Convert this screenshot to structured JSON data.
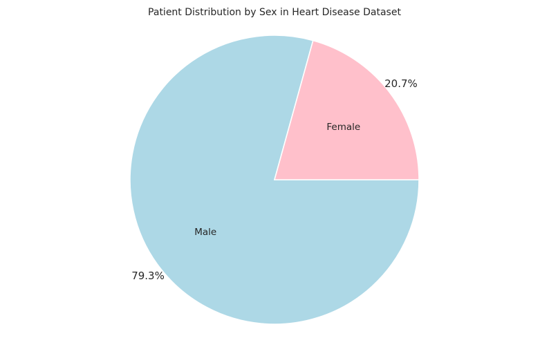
{
  "chart_data": {
    "type": "pie",
    "title": "Patient Distribution by Sex in Heart Disease Dataset",
    "slices": [
      {
        "label": "Male",
        "value": 79.3,
        "pct_label": "79.3%",
        "color": "#add8e6"
      },
      {
        "label": "Female",
        "value": 20.7,
        "pct_label": "20.7%",
        "color": "#ffc0cb"
      }
    ],
    "start_angle": "0 degrees (3 o'clock), clockwise",
    "legend": "none"
  }
}
